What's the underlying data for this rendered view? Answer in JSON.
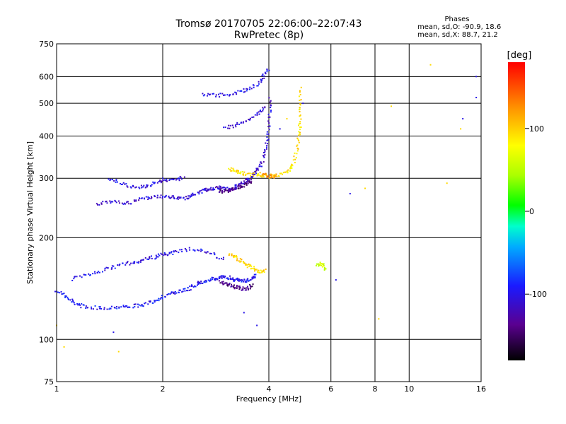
{
  "chart_data": {
    "type": "scatter",
    "title": "Tromsø 20170705 22:06:00–22:07:43",
    "subtitle": "RwPretec (8p)",
    "xlabel": "Frequency [MHz]",
    "ylabel": "Stationary phase Virtual Height [km]",
    "x_scale": "log",
    "y_scale": "log",
    "xlim": [
      1,
      16
    ],
    "ylim": [
      75,
      750
    ],
    "x_ticks": [
      1,
      2,
      4,
      6,
      8,
      10,
      16
    ],
    "x_tick_labels": [
      "1",
      "2",
      "4",
      "6",
      "8",
      "10",
      "16"
    ],
    "y_ticks": [
      75,
      100,
      200,
      300,
      400,
      500,
      600,
      750
    ],
    "y_tick_labels": [
      "75",
      "100",
      "200",
      "300",
      "400",
      "500",
      "600",
      "750"
    ],
    "grid": true,
    "colorbar": {
      "label": "[deg]",
      "range": [
        -180,
        180
      ],
      "ticks": [
        100,
        0,
        -100
      ],
      "tick_labels": [
        "100",
        "0",
        "-100"
      ]
    },
    "stats": {
      "heading": "Phases",
      "o_mode": "mean, sd,O: -90.9, 18.6",
      "x_mode": "mean, sd,X:  88.7, 21.2"
    },
    "traces": [
      {
        "trace": "E-lower",
        "phase": -95,
        "points": [
          [
            1.0,
            140
          ],
          [
            1.05,
            135
          ],
          [
            1.1,
            130
          ],
          [
            1.15,
            127
          ],
          [
            1.2,
            125
          ],
          [
            1.3,
            124
          ],
          [
            1.4,
            124
          ],
          [
            1.5,
            125
          ],
          [
            1.6,
            125
          ],
          [
            1.7,
            126
          ],
          [
            1.8,
            127
          ],
          [
            1.9,
            130
          ],
          [
            2.0,
            134
          ],
          [
            2.1,
            136
          ],
          [
            2.2,
            138
          ],
          [
            2.3,
            140
          ],
          [
            2.4,
            142
          ],
          [
            2.5,
            146
          ],
          [
            2.6,
            148
          ],
          [
            2.7,
            150
          ],
          [
            2.8,
            151
          ],
          [
            2.9,
            152
          ],
          [
            3.0,
            153
          ],
          [
            3.1,
            152
          ],
          [
            3.2,
            150
          ],
          [
            3.3,
            150
          ],
          [
            3.4,
            149
          ],
          [
            3.5,
            150
          ],
          [
            3.6,
            152
          ],
          [
            3.7,
            155
          ]
        ]
      },
      {
        "trace": "E-upper",
        "phase": -100,
        "points": [
          [
            1.1,
            150
          ],
          [
            1.2,
            155
          ],
          [
            1.3,
            158
          ],
          [
            1.4,
            162
          ],
          [
            1.5,
            165
          ],
          [
            1.6,
            168
          ],
          [
            1.7,
            170
          ],
          [
            1.8,
            173
          ],
          [
            1.9,
            175
          ],
          [
            2.0,
            178
          ],
          [
            2.1,
            180
          ],
          [
            2.2,
            182
          ],
          [
            2.4,
            185
          ],
          [
            2.6,
            183
          ],
          [
            2.8,
            178
          ],
          [
            3.0,
            172
          ]
        ]
      },
      {
        "trace": "Es-yellow",
        "phase": 95,
        "points": [
          [
            3.1,
            180
          ],
          [
            3.2,
            176
          ],
          [
            3.3,
            172
          ],
          [
            3.4,
            168
          ],
          [
            3.5,
            165
          ],
          [
            3.6,
            163
          ],
          [
            3.7,
            160
          ],
          [
            3.8,
            158
          ],
          [
            3.9,
            160
          ]
        ]
      },
      {
        "trace": "E-purple",
        "phase": -140,
        "points": [
          [
            2.9,
            148
          ],
          [
            3.0,
            146
          ],
          [
            3.1,
            145
          ],
          [
            3.2,
            143
          ],
          [
            3.3,
            142
          ],
          [
            3.4,
            141
          ],
          [
            3.5,
            142
          ],
          [
            3.6,
            145
          ]
        ]
      },
      {
        "trace": "F-lower",
        "phase": -110,
        "points": [
          [
            1.3,
            250
          ],
          [
            1.4,
            255
          ],
          [
            1.5,
            255
          ],
          [
            1.6,
            253
          ],
          [
            1.7,
            258
          ],
          [
            1.8,
            262
          ],
          [
            1.9,
            265
          ],
          [
            2.0,
            265
          ],
          [
            2.1,
            264
          ],
          [
            2.2,
            263
          ],
          [
            2.3,
            262
          ],
          [
            2.4,
            265
          ],
          [
            2.5,
            270
          ],
          [
            2.6,
            276
          ],
          [
            2.7,
            278
          ],
          [
            2.8,
            280
          ],
          [
            2.9,
            281
          ],
          [
            3.0,
            280
          ],
          [
            3.1,
            279
          ],
          [
            3.2,
            282
          ],
          [
            3.3,
            288
          ],
          [
            3.4,
            293
          ],
          [
            3.5,
            298
          ],
          [
            3.6,
            305
          ],
          [
            3.7,
            315
          ],
          [
            3.8,
            330
          ],
          [
            3.9,
            355
          ],
          [
            3.95,
            380
          ],
          [
            4.0,
            420
          ],
          [
            4.02,
            470
          ],
          [
            4.03,
            520
          ]
        ]
      },
      {
        "trace": "F-purple",
        "phase": -140,
        "points": [
          [
            2.9,
            275
          ],
          [
            3.0,
            274
          ],
          [
            3.1,
            275
          ],
          [
            3.2,
            278
          ],
          [
            3.3,
            282
          ],
          [
            3.4,
            286
          ],
          [
            3.5,
            291
          ],
          [
            3.6,
            296
          ]
        ]
      },
      {
        "trace": "F-upper",
        "phase": -105,
        "points": [
          [
            1.4,
            300
          ],
          [
            1.5,
            292
          ],
          [
            1.6,
            285
          ],
          [
            1.7,
            282
          ],
          [
            1.8,
            285
          ],
          [
            1.9,
            290
          ],
          [
            2.0,
            295
          ],
          [
            2.1,
            297
          ],
          [
            2.2,
            298
          ],
          [
            2.3,
            302
          ]
        ]
      },
      {
        "trace": "F2-high",
        "phase": -100,
        "points": [
          [
            2.6,
            530
          ],
          [
            2.8,
            528
          ],
          [
            3.0,
            530
          ],
          [
            3.2,
            535
          ],
          [
            3.4,
            545
          ],
          [
            3.6,
            560
          ],
          [
            3.8,
            580
          ],
          [
            3.9,
            610
          ],
          [
            4.0,
            640
          ]
        ]
      },
      {
        "trace": "F2-mid",
        "phase": -110,
        "points": [
          [
            3.0,
            420
          ],
          [
            3.2,
            430
          ],
          [
            3.4,
            440
          ],
          [
            3.6,
            455
          ],
          [
            3.8,
            470
          ],
          [
            3.9,
            490
          ]
        ]
      },
      {
        "trace": "X-F",
        "phase": 90,
        "points": [
          [
            3.1,
            320
          ],
          [
            3.2,
            315
          ],
          [
            3.3,
            312
          ],
          [
            3.4,
            310
          ],
          [
            3.6,
            308
          ],
          [
            3.8,
            305
          ],
          [
            4.0,
            303
          ],
          [
            4.2,
            305
          ],
          [
            4.4,
            310
          ],
          [
            4.6,
            318
          ],
          [
            4.7,
            330
          ],
          [
            4.8,
            360
          ],
          [
            4.85,
            390
          ],
          [
            4.9,
            420
          ],
          [
            4.9,
            460
          ],
          [
            4.92,
            500
          ],
          [
            4.9,
            560
          ]
        ]
      },
      {
        "trace": "X-F-orange",
        "phase": 120,
        "points": [
          [
            3.8,
            308
          ],
          [
            3.9,
            306
          ],
          [
            4.0,
            305
          ],
          [
            4.1,
            304
          ],
          [
            4.2,
            306
          ]
        ]
      },
      {
        "trace": "Es-green",
        "phase": 60,
        "points": [
          [
            5.5,
            165
          ],
          [
            5.6,
            168
          ],
          [
            5.7,
            165
          ],
          [
            5.8,
            162
          ]
        ]
      }
    ],
    "scattered": [
      [
        1.0,
        110
      ],
      [
        1.05,
        95
      ],
      [
        1.5,
        92
      ],
      [
        1.45,
        105
      ],
      [
        6.8,
        270
      ],
      [
        7.5,
        280
      ],
      [
        8.9,
        490
      ],
      [
        12.8,
        290
      ],
      [
        11.5,
        650
      ],
      [
        14.2,
        450
      ],
      [
        15.5,
        520
      ],
      [
        15.5,
        600
      ],
      [
        14.0,
        420
      ],
      [
        8.2,
        115
      ],
      [
        6.2,
        150
      ],
      [
        5.0,
        500
      ],
      [
        4.5,
        450
      ],
      [
        4.3,
        420
      ],
      [
        3.7,
        110
      ],
      [
        3.4,
        120
      ],
      [
        2.0,
        300
      ]
    ]
  }
}
